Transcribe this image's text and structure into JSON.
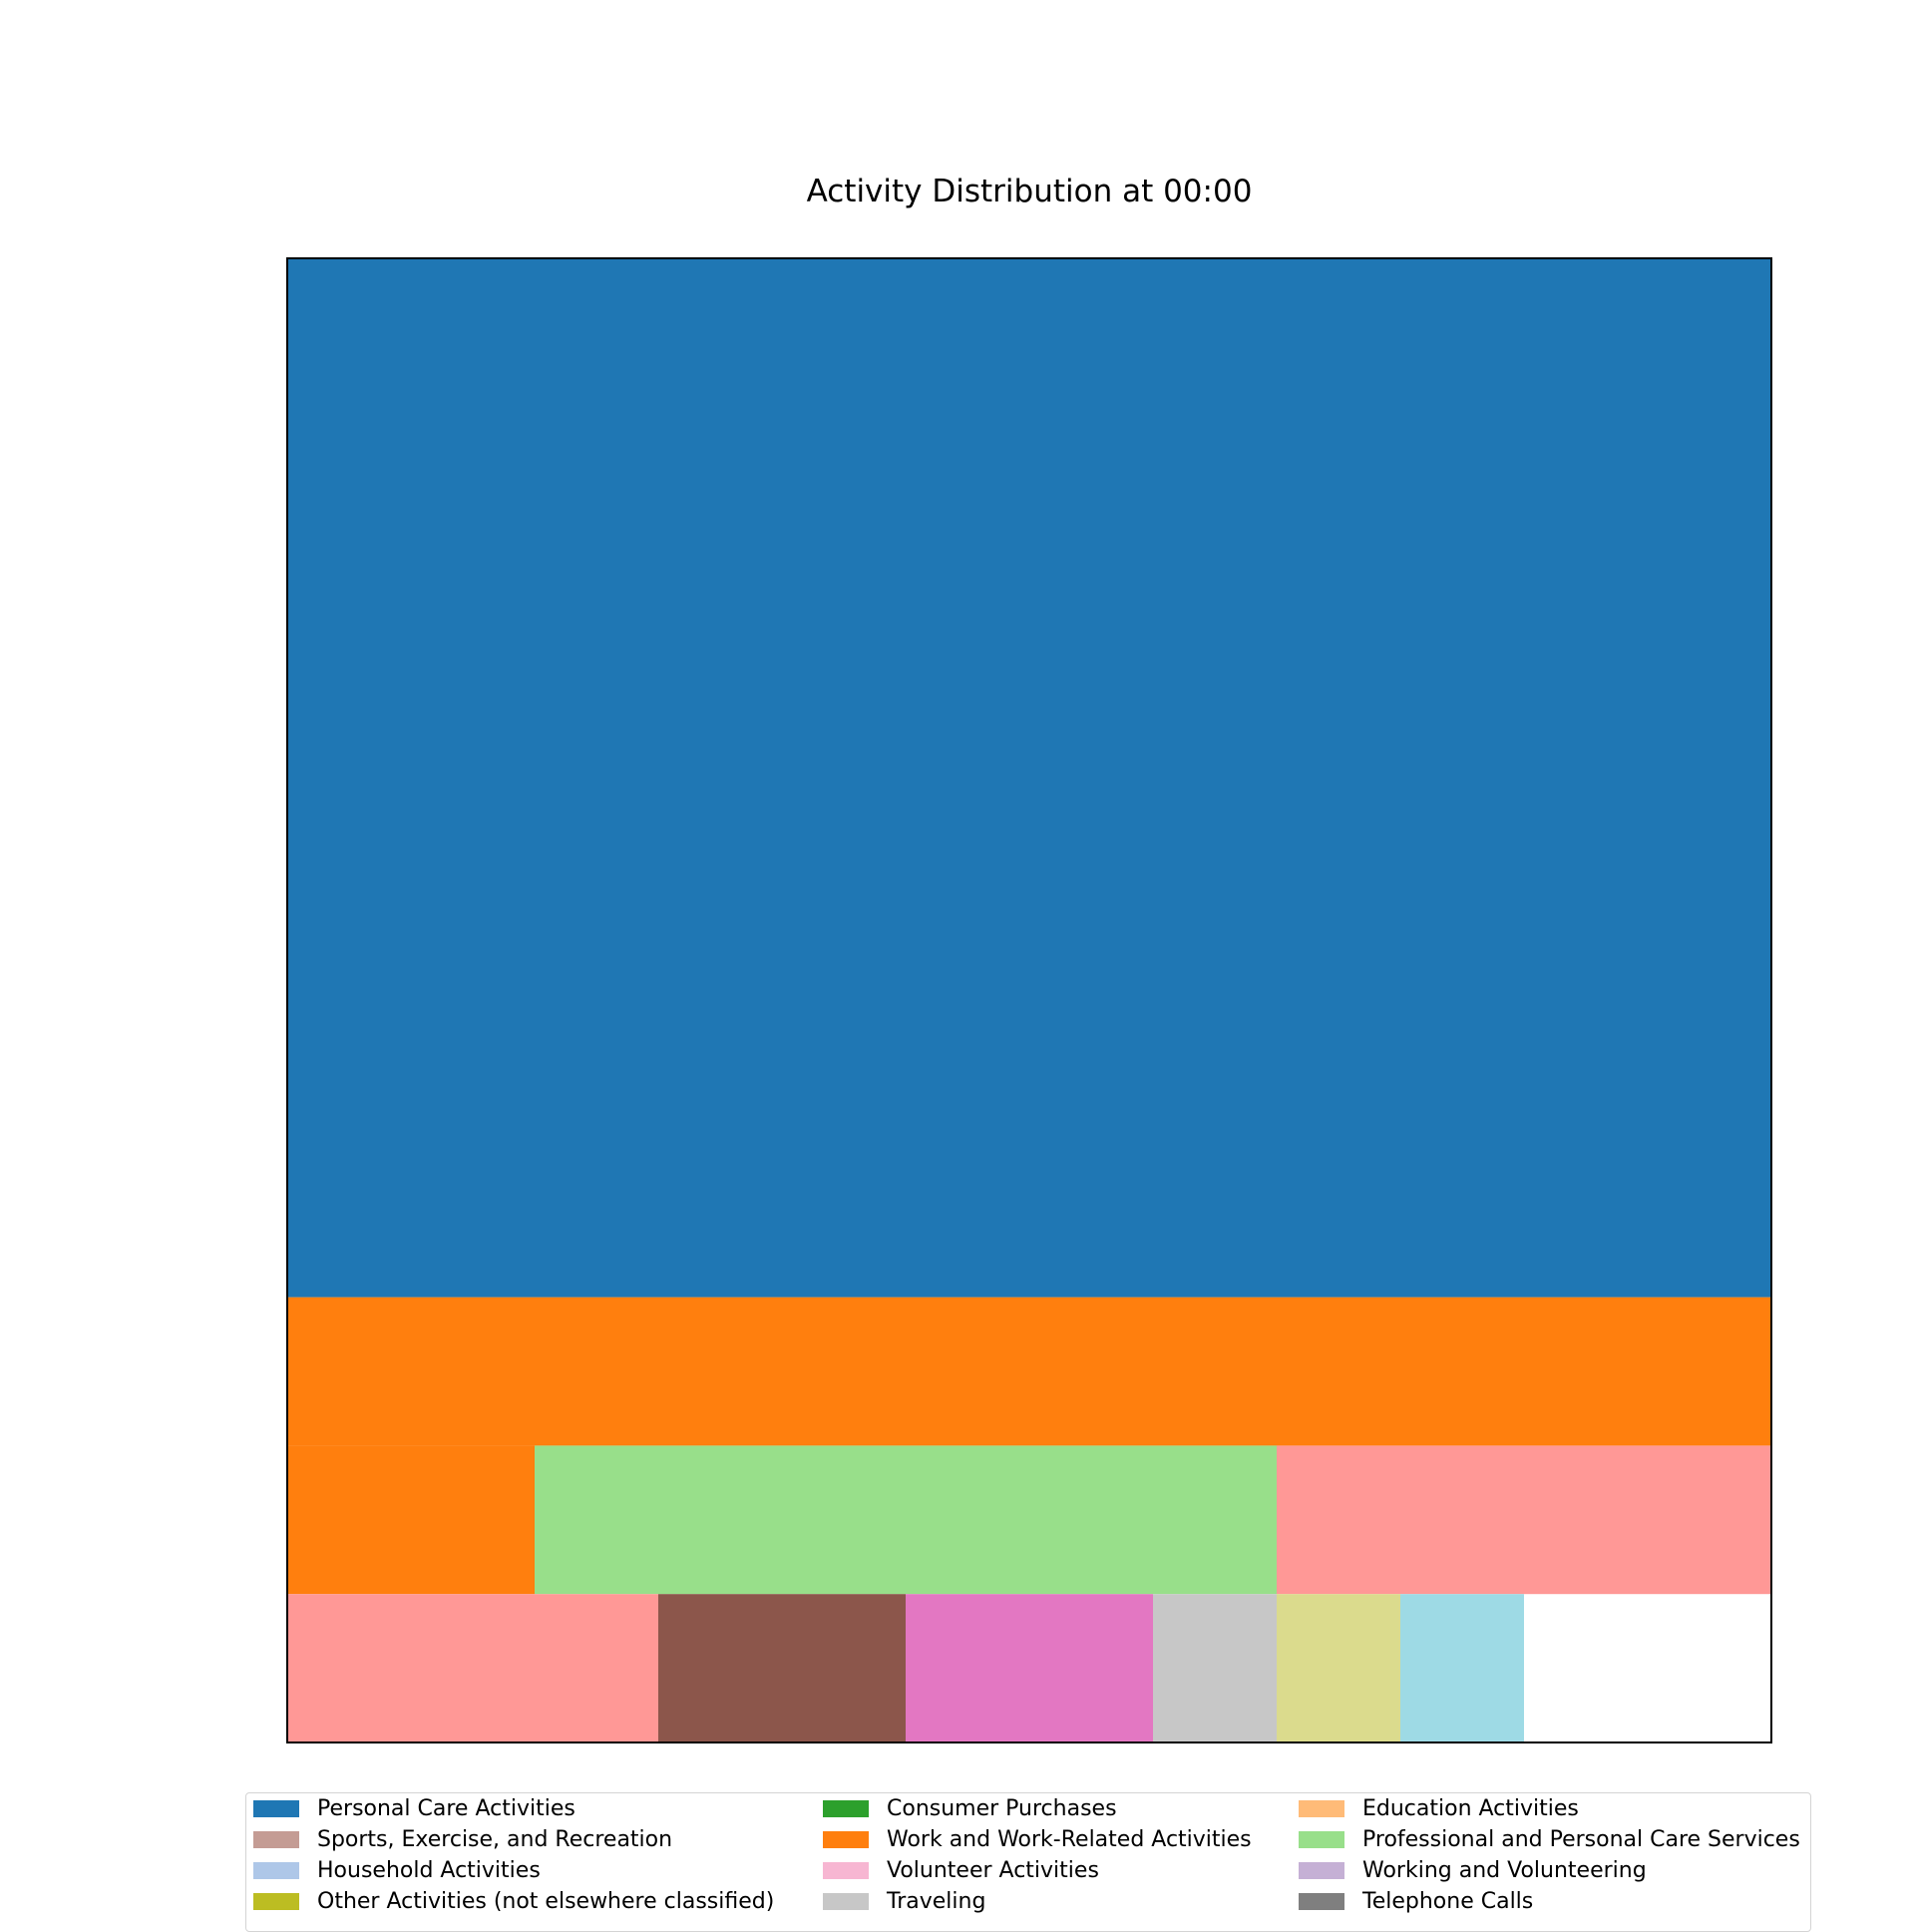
{
  "chart_data": {
    "type": "treemap",
    "title": "Activity Distribution at 00:00",
    "values": [
      {
        "name": "Personal Care Activities",
        "color": "#1f77b4",
        "value": 70
      },
      {
        "name": "Work and Work-Related Activities",
        "color": "#ff7f0e",
        "value": 12
      },
      {
        "name": "Professional and Personal Care Services",
        "color": "#98df8a",
        "value": 6
      },
      {
        "name": "",
        "color": "#ff9896",
        "value": 5
      },
      {
        "name": "",
        "color": "#8c564b",
        "value": 2
      },
      {
        "name": "",
        "color": "#e377c2",
        "value": 2
      },
      {
        "name": "Traveling",
        "color": "#c7c7c7",
        "value": 1
      },
      {
        "name": "",
        "color": "#dbdb8d",
        "value": 1
      },
      {
        "name": "",
        "color": "#9edae5",
        "value": 1
      }
    ],
    "legend": [
      {
        "label": "Personal Care Activities",
        "color": "#1f77b4"
      },
      {
        "label": "Consumer Purchases",
        "color": "#2ca02c"
      },
      {
        "label": "Education Activities",
        "color": "#ffbb78"
      },
      {
        "label": "Sports, Exercise, and Recreation",
        "color": "#c49c94"
      },
      {
        "label": "Work and Work-Related Activities",
        "color": "#ff7f0e"
      },
      {
        "label": "Professional and Personal Care Services",
        "color": "#98df8a"
      },
      {
        "label": "Household Activities",
        "color": "#aec7e8"
      },
      {
        "label": "Volunteer Activities",
        "color": "#f7b6d2"
      },
      {
        "label": "Working and Volunteering",
        "color": "#c5b0d5"
      },
      {
        "label": "Other Activities (not elsewhere classified)",
        "color": "#bcbd22"
      },
      {
        "label": "Traveling",
        "color": "#c7c7c7"
      },
      {
        "label": "Telephone Calls",
        "color": "#7f7f7f"
      }
    ],
    "legend_placement": "bottom"
  }
}
